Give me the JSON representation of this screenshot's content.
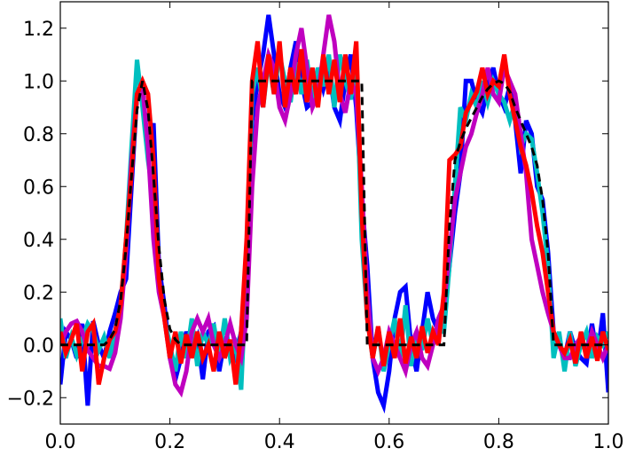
{
  "chart_data": {
    "type": "line",
    "title": "",
    "xlabel": "",
    "ylabel": "",
    "xlim": [
      0.0,
      1.0
    ],
    "ylim": [
      -0.3,
      1.3
    ],
    "grid": false,
    "xticks": [
      "0.0",
      "0.2",
      "0.4",
      "0.6",
      "0.8",
      "1.0"
    ],
    "xtick_values": [
      0,
      0.2,
      0.4,
      0.6,
      0.8,
      1.0
    ],
    "yticks": [
      "−0.2",
      "0.0",
      "0.2",
      "0.4",
      "0.6",
      "0.8",
      "1.0",
      "1.2"
    ],
    "ytick_values": [
      -0.2,
      0,
      0.2,
      0.4,
      0.6,
      0.8,
      1.0,
      1.2
    ],
    "x_start": 0.0,
    "x_step": 0.01,
    "series": [
      {
        "color": "#0000ff",
        "style": "solid",
        "values": [
          -0.15,
          0.05,
          0.02,
          -0.05,
          0.08,
          -0.23,
          0.09,
          0.0,
          -0.05,
          0.05,
          0.12,
          0.2,
          0.25,
          0.6,
          0.95,
          0.98,
          0.72,
          0.84,
          0.3,
          0.15,
          -0.05,
          -0.13,
          -0.05,
          0.05,
          -0.02,
          0.03,
          -0.13,
          0.05,
          0.07,
          -0.1,
          0.02,
          0.0,
          -0.05,
          0.05,
          0.3,
          0.85,
          1.0,
          1.1,
          1.25,
          1.1,
          0.95,
          0.9,
          1.05,
          1.15,
          1.0,
          0.9,
          0.92,
          1.05,
          0.97,
          1.05,
          0.9,
          0.85,
          1.0,
          1.1,
          0.9,
          0.55,
          0.3,
          -0.05,
          -0.18,
          -0.23,
          -0.1,
          0.1,
          0.2,
          0.22,
          0.0,
          -0.1,
          0.05,
          0.2,
          0.1,
          0.05,
          0.1,
          0.3,
          0.5,
          0.65,
          1.0,
          1.0,
          0.92,
          0.88,
          0.98,
          1.05,
          0.95,
          0.9,
          0.98,
          0.85,
          0.65,
          0.85,
          0.8,
          0.6,
          0.55,
          0.35,
          0.05,
          0.0,
          -0.05,
          0.05,
          -0.02,
          -0.05,
          -0.07,
          0.08,
          -0.05,
          0.12,
          -0.18
        ]
      },
      {
        "color": "#00bfbf",
        "style": "solid",
        "values": [
          0.1,
          -0.05,
          0.03,
          -0.04,
          0.02,
          0.08,
          0.05,
          -0.02,
          0.03,
          -0.05,
          0.05,
          0.15,
          0.4,
          0.75,
          1.08,
          0.9,
          0.7,
          0.55,
          0.25,
          0.1,
          0.0,
          -0.1,
          0.05,
          -0.05,
          0.1,
          -0.08,
          0.05,
          0.0,
          0.08,
          -0.05,
          0.1,
          -0.05,
          0.0,
          -0.17,
          0.3,
          0.95,
          1.05,
          0.9,
          1.08,
          0.95,
          1.1,
          1.0,
          0.92,
          1.07,
          0.95,
          1.08,
          0.92,
          1.05,
          0.98,
          1.1,
          0.9,
          1.1,
          1.0,
          0.93,
          1.05,
          0.4,
          0.1,
          -0.05,
          0.07,
          -0.1,
          0.0,
          0.1,
          -0.05,
          0.15,
          -0.08,
          0.05,
          -0.02,
          0.1,
          0.0,
          0.05,
          0.05,
          0.3,
          0.6,
          0.9,
          0.85,
          0.95,
          0.9,
          1.0,
          0.92,
          1.0,
          0.95,
          0.92,
          0.85,
          0.92,
          0.75,
          0.8,
          0.78,
          0.65,
          0.5,
          0.3,
          -0.05,
          0.05,
          -0.1,
          0.05,
          -0.08,
          0.0,
          0.05,
          -0.05,
          0.03,
          0.0,
          0.05
        ]
      },
      {
        "color": "#bf00bf",
        "style": "solid",
        "values": [
          0.0,
          0.05,
          0.08,
          0.09,
          0.05,
          -0.02,
          -0.05,
          -0.08,
          -0.08,
          -0.09,
          -0.03,
          0.1,
          0.35,
          0.7,
          0.95,
          0.98,
          0.75,
          0.4,
          0.2,
          0.1,
          -0.05,
          -0.15,
          -0.18,
          -0.1,
          0.05,
          0.1,
          0.05,
          0.1,
          0.0,
          -0.05,
          0.0,
          0.08,
          0.0,
          -0.05,
          0.1,
          0.6,
          0.9,
          1.0,
          1.1,
          1.05,
          0.9,
          0.85,
          0.95,
          1.1,
          1.2,
          1.05,
          0.9,
          0.95,
          1.1,
          1.25,
          1.15,
          0.95,
          0.88,
          1.0,
          0.95,
          0.6,
          0.2,
          -0.05,
          -0.1,
          -0.05,
          0.05,
          0.0,
          -0.05,
          -0.1,
          0.0,
          0.05,
          -0.05,
          -0.08,
          0.0,
          0.1,
          0.15,
          0.35,
          0.55,
          0.65,
          0.75,
          0.8,
          0.88,
          0.95,
          1.05,
          0.95,
          0.92,
          1.05,
          1.0,
          0.95,
          0.8,
          0.65,
          0.4,
          0.3,
          0.2,
          0.12,
          0.05,
          0.0,
          -0.05,
          -0.05,
          0.0,
          0.03,
          -0.02,
          0.05,
          0.0,
          -0.05,
          0.0
        ]
      },
      {
        "color": "#ff0000",
        "style": "solid",
        "values": [
          0.05,
          -0.03,
          0.02,
          0.08,
          -0.1,
          0.05,
          0.08,
          -0.15,
          -0.05,
          0.02,
          0.05,
          0.15,
          0.4,
          0.65,
          0.95,
          1.0,
          0.95,
          0.7,
          0.25,
          0.1,
          -0.05,
          0.05,
          -0.07,
          0.04,
          -0.05,
          0.05,
          -0.05,
          0.0,
          -0.1,
          0.05,
          -0.05,
          0.02,
          -0.15,
          0.05,
          0.4,
          1.0,
          1.15,
          0.9,
          1.1,
          0.95,
          1.15,
          0.9,
          1.05,
          0.95,
          1.12,
          0.92,
          1.05,
          0.9,
          1.1,
          0.95,
          1.08,
          0.92,
          1.1,
          0.95,
          1.15,
          0.5,
          0.1,
          -0.05,
          0.07,
          -0.08,
          0.05,
          -0.05,
          0.1,
          -0.07,
          0.03,
          -0.05,
          0.07,
          -0.03,
          0.05,
          0.0,
          0.2,
          0.7,
          0.72,
          0.75,
          0.88,
          0.92,
          0.96,
          1.05,
          0.95,
          1.0,
          0.98,
          1.1,
          0.95,
          0.85,
          0.75,
          0.68,
          0.58,
          0.45,
          0.35,
          0.2,
          0.05,
          0.0,
          -0.03,
          0.02,
          -0.07,
          0.05,
          -0.05,
          0.03,
          -0.06,
          0.05,
          -0.02
        ]
      },
      {
        "color": "#000000",
        "style": "dashed",
        "values": [
          0,
          0,
          0,
          0,
          0,
          0,
          0,
          0,
          0,
          0.02,
          0.06,
          0.17,
          0.37,
          0.64,
          0.89,
          1.0,
          0.89,
          0.64,
          0.37,
          0.17,
          0.06,
          0.02,
          0,
          0,
          0,
          0,
          0,
          0,
          0,
          0,
          0,
          0,
          0,
          0,
          0,
          1,
          1,
          1,
          1,
          1,
          1,
          1,
          1,
          1,
          1,
          1,
          1,
          1,
          1,
          1,
          1,
          1,
          1,
          1,
          1,
          1,
          0,
          0,
          0,
          0,
          0,
          0,
          0,
          0,
          0,
          0,
          0,
          0,
          0,
          0,
          0,
          0.45,
          0.7,
          0.77,
          0.82,
          0.86,
          0.9,
          0.94,
          0.97,
          0.99,
          1.0,
          0.99,
          0.96,
          0.9,
          0.85,
          0.8,
          0.75,
          0.68,
          0.55,
          0.35,
          0,
          0,
          0,
          0,
          0,
          0,
          0,
          0,
          0,
          0,
          0
        ]
      }
    ]
  }
}
